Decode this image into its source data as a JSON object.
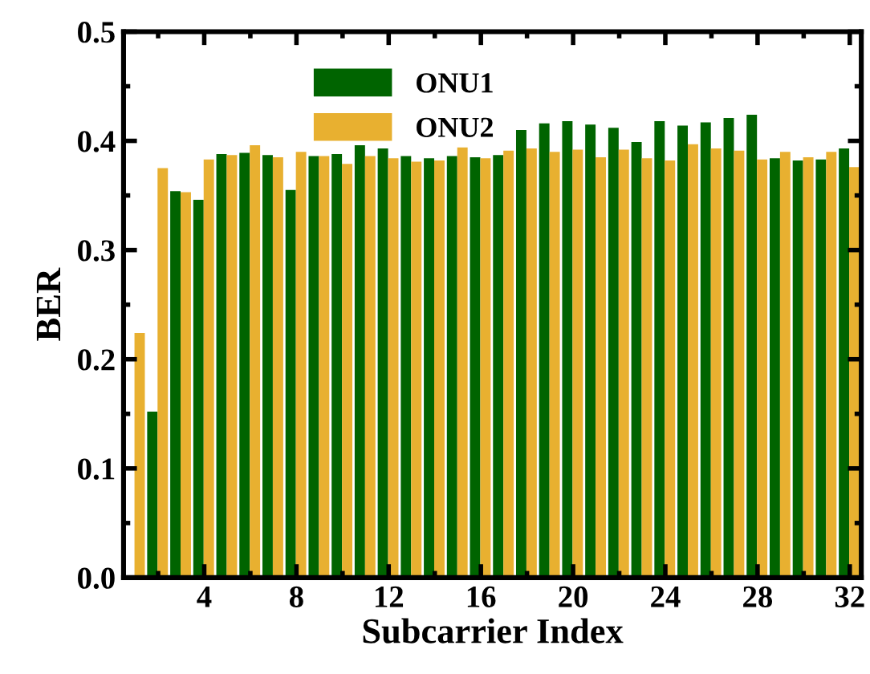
{
  "chart_data": {
    "type": "bar",
    "xlabel": "Subcarrier Index",
    "ylabel": "BER",
    "xlim": [
      0.5,
      32.5
    ],
    "xticks": [
      4,
      8,
      12,
      16,
      20,
      24,
      28,
      32
    ],
    "ylim": [
      0,
      0.5
    ],
    "yticks": [
      {
        "value": 0,
        "label": "0.0"
      },
      {
        "value": 0.1,
        "label": "0.1"
      },
      {
        "value": 0.2,
        "label": "0.2"
      },
      {
        "value": 0.3,
        "label": "0.3"
      },
      {
        "value": 0.4,
        "label": "0.4"
      },
      {
        "value": 0.5,
        "label": "0.5"
      }
    ],
    "legend": "top",
    "grid": false,
    "series": [
      {
        "name": "ONU1",
        "color": "#006400",
        "x": [
          1.75,
          2.75,
          3.75,
          4.75,
          5.75,
          6.75,
          7.75,
          8.75,
          9.75,
          10.75,
          11.75,
          12.75,
          13.75,
          14.75,
          15.75,
          16.75,
          17.75,
          18.75,
          19.75,
          20.75,
          21.75,
          22.75,
          23.75,
          24.75,
          25.75,
          26.75,
          27.75,
          28.75,
          29.75,
          30.75,
          31.75
        ],
        "values": [
          0.152,
          0.354,
          0.346,
          0.388,
          0.389,
          0.387,
          0.355,
          0.386,
          0.388,
          0.396,
          0.393,
          0.386,
          0.384,
          0.386,
          0.385,
          0.387,
          0.41,
          0.416,
          0.418,
          0.415,
          0.412,
          0.399,
          0.418,
          0.414,
          0.417,
          0.421,
          0.424,
          0.384,
          0.382,
          0.383,
          0.393
        ]
      },
      {
        "name": "ONU2",
        "color": "#e8b030",
        "x": [
          1.2,
          2.2,
          3.2,
          4.2,
          5.2,
          6.2,
          7.2,
          8.2,
          9.2,
          10.2,
          11.2,
          12.2,
          13.2,
          14.2,
          15.2,
          16.2,
          17.2,
          18.2,
          19.2,
          20.2,
          21.2,
          22.2,
          23.2,
          24.2,
          25.2,
          26.2,
          27.2,
          28.2,
          29.2,
          30.2,
          31.2,
          32.2
        ],
        "values": [
          0.224,
          0.375,
          0.353,
          0.383,
          0.387,
          0.396,
          0.385,
          0.39,
          0.386,
          0.379,
          0.386,
          0.384,
          0.381,
          0.382,
          0.394,
          0.384,
          0.391,
          0.393,
          0.39,
          0.392,
          0.385,
          0.392,
          0.384,
          0.382,
          0.397,
          0.393,
          0.391,
          0.383,
          0.39,
          0.385,
          0.39,
          0.376
        ]
      }
    ]
  }
}
